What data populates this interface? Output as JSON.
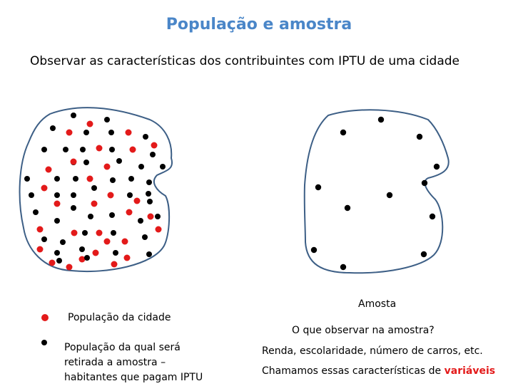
{
  "title": "População e amostra",
  "subtitle": "Observar as características dos contribuintes com IPTU de uma cidade",
  "legend": {
    "red_label": "População da cidade",
    "black_label_lines": [
      "População  da qual será",
      "retirada a amostra –",
      "habitantes que pagam IPTU"
    ]
  },
  "sample": {
    "label": "Amosta",
    "question": "O que observar na amostra?",
    "examples": "Renda, escolaridade, número de carros, etc.",
    "conclusion_prefix": "Chamamos essas características de ",
    "conclusion_highlight": "variáveis"
  },
  "colors": {
    "title": "#4a86c8",
    "outline": "#3d5f86",
    "red_dot": "#e31a1a",
    "black_dot": "#000000",
    "highlight": "#e31a1a"
  }
}
